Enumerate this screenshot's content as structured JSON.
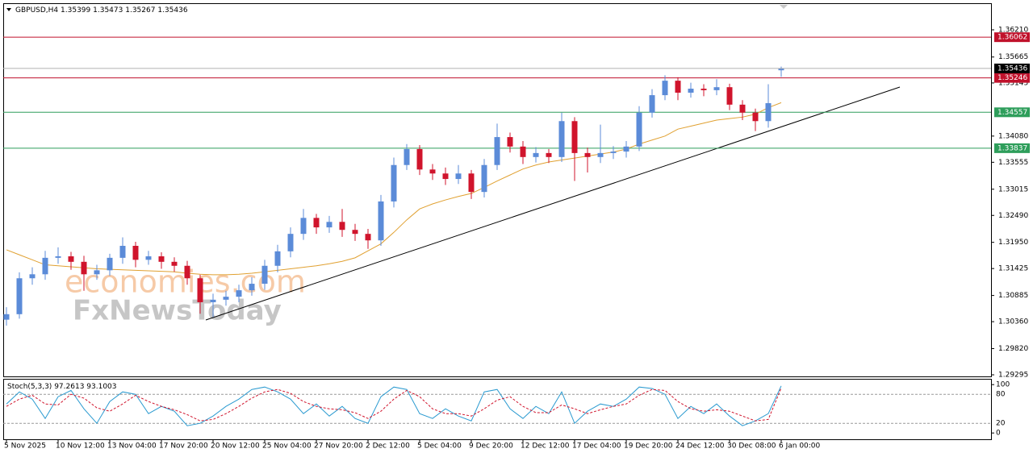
{
  "chart_data": {
    "type": "candlestick",
    "symbol": "GBPUSD,H4",
    "open": [
      1.304,
      1.3051,
      1.3123,
      1.3131,
      1.3164,
      1.3167,
      1.3156,
      1.3131,
      1.3139,
      1.3164,
      1.3188,
      1.316,
      1.3167,
      1.3156,
      1.3148,
      1.3123,
      1.3075,
      1.308,
      1.3086,
      1.3099,
      1.3112,
      1.3148,
      1.3177,
      1.3212,
      1.3244,
      1.3225,
      1.3236,
      1.322,
      1.3212,
      1.3199,
      1.3277,
      1.335,
      1.3382,
      1.3341,
      1.3333,
      1.3322,
      1.3333,
      1.3296,
      1.335,
      1.3406,
      1.3387,
      1.3366,
      1.3374,
      1.3366,
      1.3438,
      1.3374,
      1.3366,
      1.3374,
      1.3377,
      1.3387,
      1.3455,
      1.349,
      1.3519,
      1.3495,
      1.3503,
      1.35,
      1.3506,
      1.3471,
      1.3455,
      1.3438,
      1.35399
    ],
    "high": [
      1.3065,
      1.3135,
      1.3145,
      1.3178,
      1.3185,
      1.3176,
      1.3168,
      1.315,
      1.3172,
      1.3205,
      1.3196,
      1.3178,
      1.3175,
      1.3165,
      1.3158,
      1.313,
      1.3092,
      1.3098,
      1.311,
      1.3125,
      1.316,
      1.319,
      1.3225,
      1.3262,
      1.3252,
      1.3248,
      1.3262,
      1.3232,
      1.3222,
      1.329,
      1.3365,
      1.3392,
      1.339,
      1.3352,
      1.3345,
      1.335,
      1.334,
      1.3362,
      1.3433,
      1.3415,
      1.3398,
      1.3386,
      1.3382,
      1.3455,
      1.3446,
      1.3385,
      1.3431,
      1.3388,
      1.3398,
      1.3468,
      1.3502,
      1.353,
      1.3526,
      1.3515,
      1.3512,
      1.3522,
      1.3513,
      1.348,
      1.3463,
      1.3512,
      1.35473
    ],
    "low": [
      1.3028,
      1.3042,
      1.311,
      1.312,
      1.3152,
      1.314,
      1.3098,
      1.312,
      1.3128,
      1.3152,
      1.3145,
      1.315,
      1.3142,
      1.3136,
      1.311,
      1.3052,
      1.3045,
      1.3068,
      1.3075,
      1.3088,
      1.31,
      1.3135,
      1.3165,
      1.32,
      1.3212,
      1.3214,
      1.3206,
      1.3198,
      1.3182,
      1.3188,
      1.3265,
      1.334,
      1.333,
      1.332,
      1.331,
      1.3312,
      1.3282,
      1.3285,
      1.334,
      1.3375,
      1.3352,
      1.3355,
      1.3354,
      1.3356,
      1.3318,
      1.3335,
      1.3354,
      1.3362,
      1.3365,
      1.3378,
      1.3445,
      1.348,
      1.348,
      1.3485,
      1.3488,
      1.349,
      1.346,
      1.344,
      1.3418,
      1.3425,
      1.35267
    ],
    "close": [
      1.3051,
      1.3123,
      1.3131,
      1.3164,
      1.3167,
      1.3156,
      1.3131,
      1.3139,
      1.3164,
      1.3188,
      1.316,
      1.3167,
      1.3156,
      1.3148,
      1.3123,
      1.3075,
      1.308,
      1.3086,
      1.3099,
      1.3112,
      1.3148,
      1.3177,
      1.3212,
      1.3244,
      1.3225,
      1.3236,
      1.322,
      1.3212,
      1.3199,
      1.3277,
      1.335,
      1.3382,
      1.3341,
      1.3333,
      1.3322,
      1.3333,
      1.3296,
      1.335,
      1.3406,
      1.3387,
      1.3366,
      1.3374,
      1.3366,
      1.3438,
      1.3374,
      1.3366,
      1.3374,
      1.3377,
      1.3387,
      1.3455,
      1.349,
      1.3519,
      1.3495,
      1.3503,
      1.35,
      1.3506,
      1.3471,
      1.3455,
      1.3438,
      1.3474,
      1.35436
    ],
    "up_color": "#5b8bd8",
    "down_color": "#d0142c",
    "ma": {
      "color": "#e0a030",
      "values": [
        1.318,
        1.317,
        1.316,
        1.315,
        1.3148,
        1.3146,
        1.3144,
        1.3142,
        1.3141,
        1.314,
        1.3139,
        1.3138,
        1.3137,
        1.3136,
        1.3133,
        1.3131,
        1.313,
        1.313,
        1.3131,
        1.3133,
        1.3136,
        1.3139,
        1.3142,
        1.3145,
        1.3148,
        1.3152,
        1.3157,
        1.3164,
        1.3178,
        1.3192,
        1.3215,
        1.324,
        1.3262,
        1.3272,
        1.328,
        1.3287,
        1.3293,
        1.3305,
        1.3318,
        1.333,
        1.3342,
        1.335,
        1.3356,
        1.336,
        1.3364,
        1.3368,
        1.3372,
        1.3376,
        1.3382,
        1.3392,
        1.34,
        1.3408,
        1.3422,
        1.3428,
        1.3434,
        1.344,
        1.3443,
        1.3446,
        1.3452,
        1.3465,
        1.3475
      ]
    },
    "levels": [
      {
        "value": 1.36062,
        "color": "#c0112b"
      },
      {
        "value": 1.35246,
        "color": "#c0112b"
      },
      {
        "value": 1.34557,
        "color": "#2e9e5b"
      },
      {
        "value": 1.33837,
        "color": "#2e9e5b"
      }
    ],
    "ylim": [
      1.29263,
      1.36743
    ],
    "yticks": [
      {
        "value": 1.3621,
        "label": "1.36210"
      },
      1.35665,
      1.35145,
      {
        "value": 1.3408,
        "label": "1.34080"
      },
      1.33555,
      1.33015,
      {
        "value": 1.3249,
        "label": "1.32490"
      },
      {
        "value": 1.3195,
        "label": "1.31950"
      },
      1.31425,
      1.30885,
      {
        "value": 1.3036,
        "label": "1.30360"
      },
      {
        "value": 1.2982,
        "label": "1.29820"
      },
      1.29295
    ],
    "x_labels": [
      "5 Nov 2025",
      "10 Nov 12:00",
      "13 Nov 04:00",
      "17 Nov 20:00",
      "20 Nov 12:00",
      "25 Nov 04:00",
      "27 Nov 20:00",
      "2 Dec 12:00",
      "5 Dec 04:00",
      "9 Dec 20:00",
      "12 Dec 12:00",
      "17 Dec 04:00",
      "19 Dec 20:00",
      "24 Dec 12:00",
      "30 Dec 08:00",
      "6 Jan 00:00"
    ],
    "stoch": {
      "type": "line",
      "name": "Stoch(5,3,3)",
      "series": [
        {
          "color": "#2a9ad0",
          "values": [
            60,
            85,
            70,
            30,
            75,
            88,
            50,
            20,
            65,
            85,
            80,
            40,
            55,
            45,
            15,
            20,
            35,
            55,
            70,
            90,
            95,
            85,
            70,
            40,
            60,
            35,
            55,
            30,
            20,
            75,
            95,
            90,
            40,
            30,
            50,
            35,
            25,
            85,
            90,
            50,
            30,
            55,
            40,
            85,
            20,
            45,
            60,
            55,
            70,
            95,
            92,
            80,
            30,
            55,
            40,
            60,
            35,
            15,
            25,
            40,
            97.2613
          ]
        },
        {
          "color": "#d0142c",
          "values": [
            55,
            70,
            78,
            60,
            58,
            80,
            72,
            52,
            45,
            60,
            78,
            65,
            55,
            48,
            38,
            25,
            28,
            40,
            55,
            72,
            85,
            90,
            82,
            65,
            55,
            50,
            48,
            42,
            30,
            45,
            70,
            88,
            75,
            50,
            40,
            40,
            35,
            50,
            68,
            75,
            55,
            42,
            42,
            58,
            50,
            40,
            48,
            55,
            60,
            78,
            90,
            88,
            65,
            50,
            45,
            48,
            45,
            35,
            25,
            28,
            93.1003
          ]
        }
      ],
      "ylim": [
        -13,
        112
      ],
      "yticks": [
        100,
        80,
        20,
        0
      ]
    },
    "watermark": [
      "economies.com",
      "FxNewsToday"
    ]
  }
}
